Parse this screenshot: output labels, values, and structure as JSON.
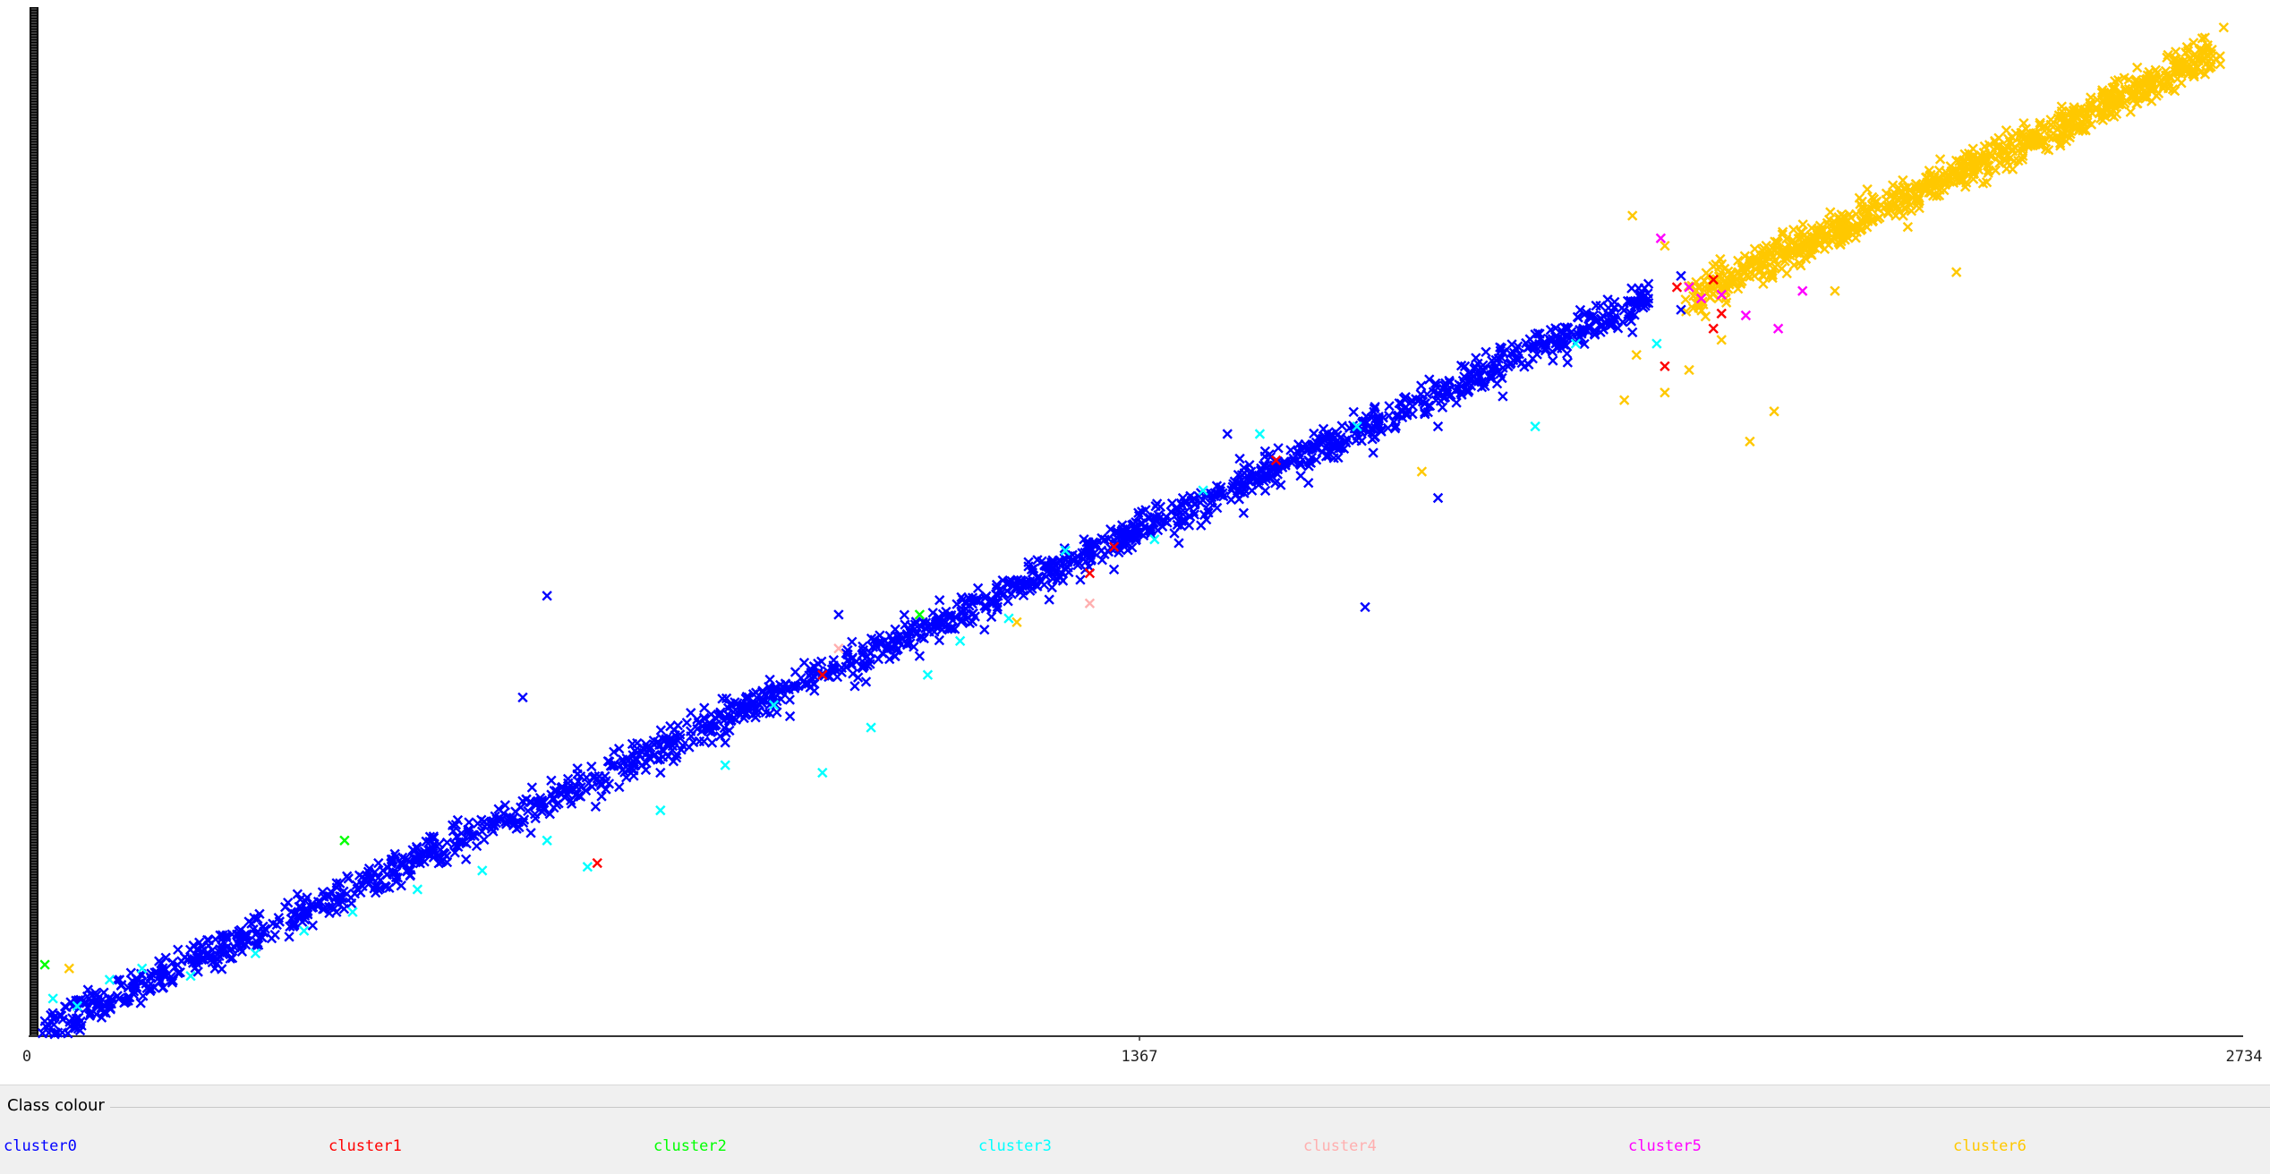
{
  "chart_data": {
    "type": "scatter",
    "title": "",
    "xlabel": "",
    "ylabel": "",
    "marker": "x",
    "xlim": [
      0,
      2734
    ],
    "ylim": [
      0,
      2734
    ],
    "x_ticks": [
      "0",
      "1367",
      "2734"
    ],
    "grid": false,
    "legend": {
      "title": "Class colour",
      "position": "bottom",
      "entries": [
        {
          "name": "cluster0",
          "color": "#0000ff"
        },
        {
          "name": "cluster1",
          "color": "#ff0000"
        },
        {
          "name": "cluster2",
          "color": "#00ff00"
        },
        {
          "name": "cluster3",
          "color": "#00ffff"
        },
        {
          "name": "cluster4",
          "color": "#ffafaf"
        },
        {
          "name": "cluster5",
          "color": "#ff00ff"
        },
        {
          "name": "cluster6",
          "color": "#ffc800"
        }
      ]
    },
    "series": [
      {
        "name": "cluster0",
        "color": "#0000ff",
        "trend": {
          "x": [
            0,
            2000
          ],
          "y": [
            0,
            1960
          ]
        },
        "points": [
          [
            20,
            40
          ],
          [
            80,
            90
          ],
          [
            150,
            120
          ],
          [
            230,
            180
          ],
          [
            300,
            260
          ],
          [
            380,
            330
          ],
          [
            460,
            400
          ],
          [
            540,
            470
          ],
          [
            620,
            540
          ],
          [
            700,
            610
          ],
          [
            780,
            700
          ],
          [
            860,
            780
          ],
          [
            940,
            850
          ],
          [
            1020,
            930
          ],
          [
            1100,
            1010
          ],
          [
            1180,
            1080
          ],
          [
            1260,
            1160
          ],
          [
            1340,
            1240
          ],
          [
            1420,
            1310
          ],
          [
            1500,
            1390
          ],
          [
            1580,
            1470
          ],
          [
            1660,
            1550
          ],
          [
            1740,
            1620
          ],
          [
            1820,
            1700
          ],
          [
            1900,
            1790
          ],
          [
            1980,
            1870
          ],
          [
            2040,
            1930
          ],
          [
            2040,
            2020
          ],
          [
            1650,
            1140
          ],
          [
            640,
            1170
          ],
          [
            610,
            900
          ],
          [
            1000,
            1120
          ],
          [
            1480,
            1600
          ],
          [
            1740,
            1430
          ]
        ]
      },
      {
        "name": "cluster1",
        "color": "#ff0000",
        "points": [
          [
            702,
            460
          ],
          [
            980,
            960
          ],
          [
            1310,
            1230
          ],
          [
            1340,
            1300
          ],
          [
            1540,
            1530
          ],
          [
            2020,
            1780
          ],
          [
            2080,
            1880
          ],
          [
            2090,
            1920
          ],
          [
            2080,
            2010
          ],
          [
            2035,
            1990
          ]
        ]
      },
      {
        "name": "cluster2",
        "color": "#00ff00",
        "points": [
          [
            20,
            190
          ],
          [
            390,
            520
          ],
          [
            1100,
            1120
          ]
        ]
      },
      {
        "name": "cluster3",
        "color": "#00ffff",
        "points": [
          [
            30,
            100
          ],
          [
            60,
            80
          ],
          [
            100,
            150
          ],
          [
            140,
            180
          ],
          [
            200,
            160
          ],
          [
            280,
            220
          ],
          [
            340,
            280
          ],
          [
            400,
            330
          ],
          [
            480,
            390
          ],
          [
            560,
            440
          ],
          [
            640,
            520
          ],
          [
            690,
            450
          ],
          [
            780,
            600
          ],
          [
            860,
            720
          ],
          [
            920,
            880
          ],
          [
            980,
            700
          ],
          [
            1040,
            820
          ],
          [
            1110,
            960
          ],
          [
            1150,
            1050
          ],
          [
            1210,
            1110
          ],
          [
            1280,
            1290
          ],
          [
            1390,
            1320
          ],
          [
            1450,
            1450
          ],
          [
            1520,
            1600
          ],
          [
            1640,
            1620
          ],
          [
            1860,
            1620
          ],
          [
            1910,
            1840
          ],
          [
            2010,
            1840
          ]
        ]
      },
      {
        "name": "cluster4",
        "color": "#ffafaf",
        "points": [
          [
            1000,
            1030
          ],
          [
            1310,
            1150
          ]
        ]
      },
      {
        "name": "cluster5",
        "color": "#ff00ff",
        "points": [
          [
            2015,
            2120
          ],
          [
            2050,
            1990
          ],
          [
            2065,
            1960
          ],
          [
            2090,
            1970
          ],
          [
            2120,
            1915
          ],
          [
            2160,
            1880
          ],
          [
            2190,
            1980
          ]
        ]
      },
      {
        "name": "cluster6",
        "color": "#ffc800",
        "trend": {
          "x": [
            2050,
            2700
          ],
          "y": [
            1960,
            2610
          ]
        },
        "points": [
          [
            50,
            180
          ],
          [
            1220,
            1100
          ],
          [
            1720,
            1500
          ],
          [
            1970,
            1690
          ],
          [
            1985,
            1810
          ],
          [
            2020,
            1710
          ],
          [
            2050,
            1770
          ],
          [
            2090,
            1850
          ],
          [
            2125,
            1580
          ],
          [
            2155,
            1660
          ],
          [
            1980,
            2180
          ],
          [
            2020,
            2100
          ],
          [
            2200,
            2080
          ],
          [
            2320,
            2150
          ],
          [
            2420,
            2300
          ],
          [
            2510,
            2470
          ],
          [
            2580,
            2540
          ],
          [
            2640,
            2600
          ],
          [
            2680,
            2620
          ],
          [
            2710,
            2680
          ],
          [
            2380,
            2030
          ],
          [
            2230,
            1980
          ],
          [
            2270,
            2250
          ],
          [
            2360,
            2330
          ],
          [
            2460,
            2400
          ],
          [
            2600,
            2500
          ]
        ]
      }
    ]
  }
}
